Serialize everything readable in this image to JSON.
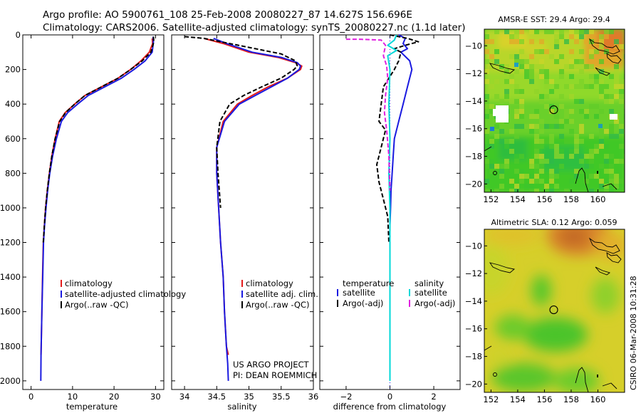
{
  "header": {
    "line1": "Argo profile: AO 5900761_108 25-Feb-2008 20080227_87 14.627S 156.696E",
    "line2": "Climatology: CARS2006. Satellite-adjusted climatology: synTS_20080227.nc (1.1d later)"
  },
  "credit": {
    "line1": "US ARGO PROJECT",
    "line2": "PI: DEAN ROEMMICH"
  },
  "footer": {
    "stamp": "CSIRO 06-Mar-2008 10:31:28"
  },
  "colors": {
    "climatology": "#e41a1a",
    "satellite": "#1a1ae0",
    "argo": "#000000",
    "sal_satellite": "#00d8d8",
    "sal_argo": "#e020e0"
  },
  "chart_data": [
    {
      "type": "line",
      "xlabel": "temperature",
      "ylabel": "",
      "xlim": [
        -2,
        32
      ],
      "ylim": [
        2050,
        0
      ],
      "y_reversed": true,
      "xticks": [
        0,
        10,
        20,
        30
      ],
      "yticks": [
        0,
        200,
        400,
        600,
        800,
        1000,
        1200,
        1400,
        1600,
        1800,
        2000
      ],
      "series": [
        {
          "name": "climatology",
          "color": "#e41a1a",
          "style": "solid",
          "x": [
            29.2,
            29.3,
            28.5,
            26.5,
            24,
            21,
            17,
            13,
            10.5,
            8.2,
            6.8,
            5.8,
            5.0,
            4.4,
            3.9,
            3.5,
            3.2,
            2.95,
            2.75,
            2.6,
            2.4
          ],
          "y": [
            20,
            50,
            100,
            150,
            200,
            250,
            300,
            350,
            400,
            450,
            500,
            600,
            700,
            800,
            900,
            1000,
            1100,
            1200,
            1400,
            1600,
            1850
          ]
        },
        {
          "name": "satellite-adjusted climatology",
          "color": "#1a1ae0",
          "style": "solid",
          "x": [
            29.4,
            29.5,
            29.2,
            27.5,
            24.8,
            21.8,
            17.8,
            13.8,
            11.2,
            8.8,
            7.3,
            6.1,
            5.2,
            4.5,
            4.0,
            3.6,
            3.25,
            3.0,
            2.8,
            2.6,
            2.4,
            2.35
          ],
          "y": [
            10,
            40,
            100,
            150,
            200,
            250,
            300,
            350,
            400,
            450,
            500,
            600,
            700,
            800,
            900,
            1000,
            1100,
            1200,
            1400,
            1600,
            1850,
            2000
          ]
        },
        {
          "name": "Argo(..raw -QC)",
          "color": "#000000",
          "style": "dash",
          "x": [
            29.5,
            29.6,
            28.9,
            26.8,
            24.0,
            21.0,
            17.0,
            13.0,
            10.5,
            8.3,
            6.9,
            5.8,
            5.0,
            4.4,
            3.9,
            3.5,
            3.2,
            2.95
          ],
          "y": [
            10,
            40,
            100,
            150,
            200,
            250,
            300,
            350,
            400,
            450,
            500,
            600,
            700,
            800,
            900,
            1000,
            1100,
            1200
          ]
        }
      ],
      "legend": [
        "climatology",
        "satellite-adjusted climatology",
        "Argo(..raw -QC)"
      ]
    },
    {
      "type": "line",
      "xlabel": "salinity",
      "ylabel": "",
      "xlim": [
        33.8,
        36.0
      ],
      "ylim": [
        2050,
        0
      ],
      "y_reversed": true,
      "xticks": [
        34,
        34.5,
        35,
        35.5,
        36
      ],
      "xticklabels": [
        "34",
        "34.5",
        "35",
        "35.5",
        "36"
      ],
      "series": [
        {
          "name": "climatology",
          "color": "#e41a1a",
          "style": "solid",
          "x": [
            34.3,
            34.6,
            35.0,
            35.45,
            35.72,
            35.82,
            35.8,
            35.6,
            35.3,
            35.05,
            34.82,
            34.6,
            34.5,
            34.5,
            34.53,
            34.56,
            34.6,
            34.62,
            34.65,
            34.68
          ],
          "y": [
            20,
            50,
            100,
            130,
            160,
            180,
            200,
            250,
            300,
            350,
            400,
            500,
            650,
            800,
            1000,
            1200,
            1400,
            1600,
            1800,
            1850
          ]
        },
        {
          "name": "satellite adj. clim.",
          "color": "#1a1ae0",
          "style": "solid",
          "x": [
            34.45,
            34.65,
            35.05,
            35.5,
            35.75,
            35.8,
            35.78,
            35.6,
            35.35,
            35.1,
            34.85,
            34.62,
            34.5,
            34.5,
            34.53,
            34.56,
            34.6,
            34.62,
            34.65,
            34.67,
            34.68
          ],
          "y": [
            20,
            50,
            100,
            130,
            160,
            180,
            200,
            250,
            300,
            350,
            400,
            500,
            650,
            800,
            1000,
            1200,
            1400,
            1600,
            1800,
            1900,
            2000
          ]
        },
        {
          "name": "Argo(..raw -QC)",
          "color": "#000000",
          "style": "dash",
          "x": [
            34.0,
            34.3,
            34.7,
            35.1,
            35.5,
            35.72,
            35.75,
            35.7,
            35.5,
            35.2,
            34.92,
            34.7,
            34.55,
            34.5,
            34.52,
            34.56
          ],
          "y": [
            10,
            20,
            50,
            80,
            110,
            150,
            180,
            200,
            250,
            300,
            350,
            400,
            500,
            650,
            800,
            1000
          ]
        }
      ],
      "legend": [
        "climatology",
        "satellite adj. clim.",
        "Argo(..raw -QC)"
      ]
    },
    {
      "type": "line",
      "xlabel": "difference from climatology",
      "ylabel": "",
      "xlim": [
        -3.2,
        3.2
      ],
      "ylim": [
        2050,
        0
      ],
      "y_reversed": true,
      "xticks": [
        -2,
        0,
        2
      ],
      "series": [
        {
          "name": "temperature satellite",
          "color": "#1a1ae0",
          "style": "solid",
          "x": [
            0.4,
            0.7,
            0.6,
            0.8,
            0.5,
            0.9,
            1.0,
            0.8,
            0.6,
            0.4,
            0.2,
            0.15,
            0.1,
            0.05,
            0.03,
            0.0
          ],
          "y": [
            0,
            20,
            50,
            80,
            100,
            150,
            200,
            300,
            400,
            500,
            600,
            700,
            800,
            900,
            1000,
            1100
          ]
        },
        {
          "name": "temperature Argo(-adj)",
          "color": "#000000",
          "style": "dash",
          "x": [
            0.0,
            0.8,
            1.3,
            0.7,
            0.2,
            0.5,
            0.4,
            0.2,
            -0.3,
            -0.4,
            -0.5,
            -0.2,
            -0.4,
            -0.6,
            -0.5,
            -0.3,
            -0.1,
            -0.05
          ],
          "y": [
            0,
            20,
            40,
            60,
            80,
            100,
            150,
            200,
            300,
            400,
            500,
            550,
            650,
            750,
            850,
            950,
            1050,
            1200
          ]
        },
        {
          "name": "salinity satellite",
          "color": "#00d8d8",
          "style": "solid",
          "x": [
            0.3,
            0.2,
            -0.1,
            0.3,
            -0.1,
            0.0,
            -0.05,
            0.0,
            -0.05,
            0.0,
            0.0
          ],
          "y": [
            0,
            30,
            60,
            90,
            120,
            200,
            400,
            600,
            800,
            1000,
            2000
          ]
        },
        {
          "name": "salinity Argo(-adj)",
          "color": "#e020e0",
          "style": "dash",
          "x": [
            -2.0,
            -1.4,
            -0.4,
            -0.2,
            -0.3,
            -0.15,
            -0.1,
            -0.2,
            -0.25,
            -0.15,
            -0.05,
            0.0
          ],
          "y": [
            25,
            25,
            30,
            60,
            120,
            180,
            250,
            350,
            450,
            550,
            700,
            900
          ]
        }
      ],
      "legend_groups": [
        {
          "title": "temperature",
          "items": [
            "satellite",
            "Argo(-adj)"
          ]
        },
        {
          "title": "salinity",
          "items": [
            "satellite",
            "Argo(-adj)"
          ]
        }
      ]
    },
    {
      "type": "heatmap",
      "title": "AMSR-E SST: 29.4 Argo: 29.4",
      "xlim": [
        151.5,
        162
      ],
      "ylim": [
        -20.6,
        -8.8
      ],
      "xticks": [
        152,
        154,
        156,
        158,
        160
      ],
      "yticks": [
        -10,
        -12,
        -14,
        -16,
        -18,
        -20
      ],
      "marker": {
        "lon": 156.696,
        "lat": -14.627
      }
    },
    {
      "type": "heatmap",
      "title": "Altimetric SLA: 0.12 Argo: 0.059",
      "xlim": [
        151.5,
        162
      ],
      "ylim": [
        -20.6,
        -8.8
      ],
      "xticks": [
        152,
        154,
        156,
        158,
        160
      ],
      "yticks": [
        -10,
        -12,
        -14,
        -16,
        -18,
        -20
      ],
      "marker": {
        "lon": 156.696,
        "lat": -14.627
      }
    }
  ]
}
